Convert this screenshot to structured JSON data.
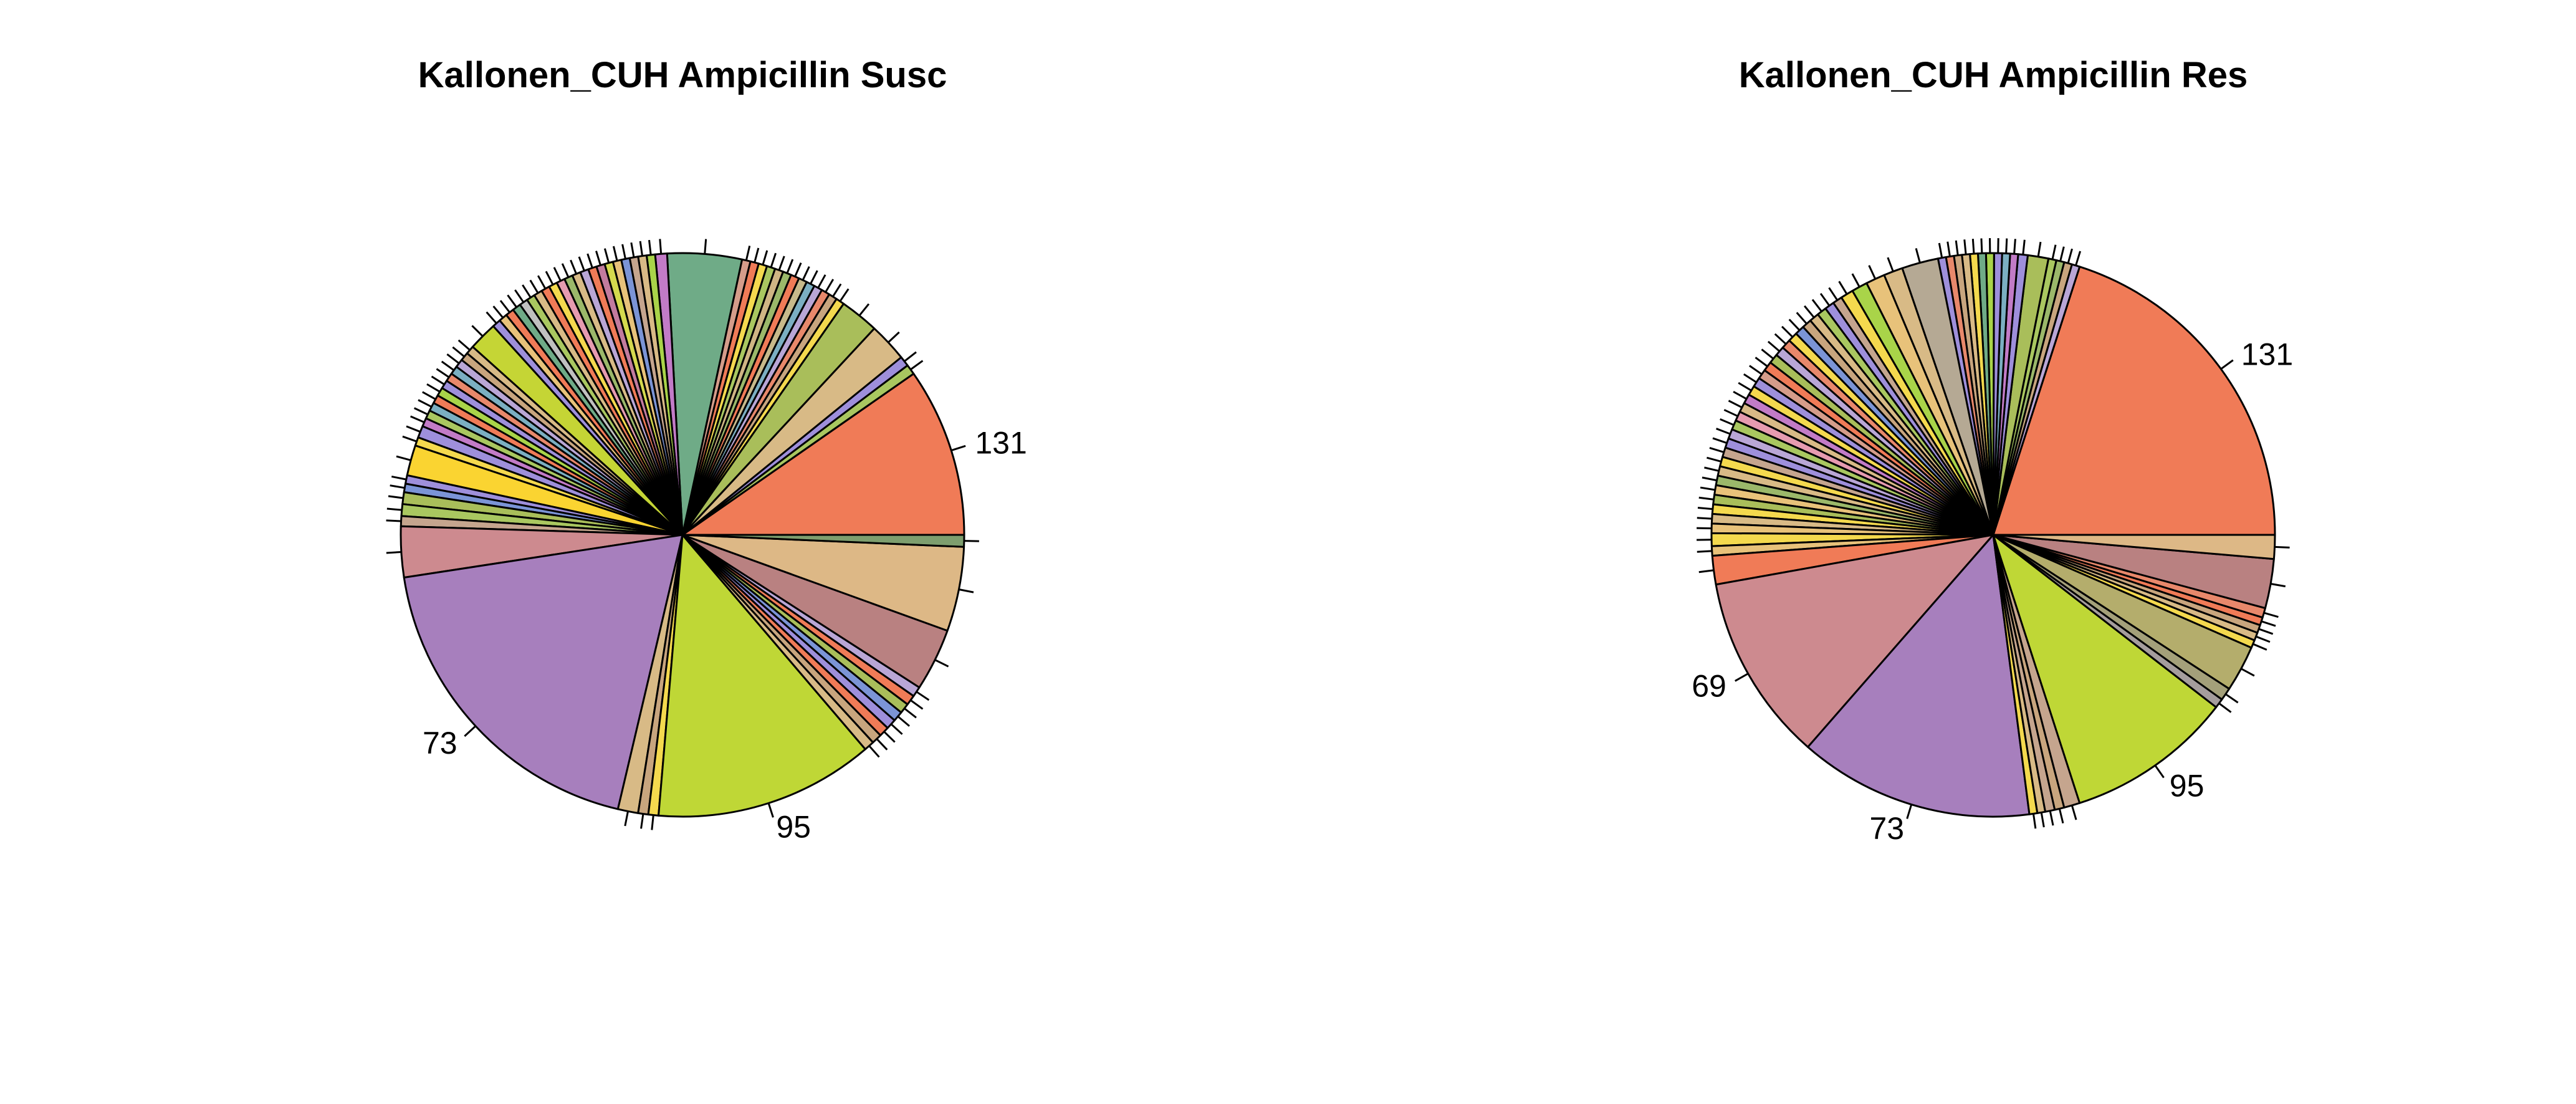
{
  "chart_data": [
    {
      "type": "pie",
      "title": "Kallonen_CUH Ampicillin Susc",
      "labeled_slices": [
        {
          "label": "131",
          "value": 10.0
        },
        {
          "label": "95",
          "value": 13.0
        },
        {
          "label": "73",
          "value": 19.5
        }
      ],
      "values": [
        10.0,
        0.6,
        0.6,
        2.3,
        2.3,
        0.5,
        0.5,
        0.5,
        0.5,
        0.5,
        0.5,
        0.5,
        0.5,
        0.5,
        0.5,
        0.5,
        0.5,
        0.5,
        4.4,
        0.7,
        0.5,
        0.5,
        0.5,
        0.5,
        0.5,
        0.5,
        0.5,
        0.5,
        0.5,
        0.5,
        0.5,
        0.5,
        0.5,
        0.5,
        0.5,
        0.5,
        0.5,
        0.5,
        0.5,
        0.5,
        0.5,
        1.7,
        0.5,
        0.5,
        0.5,
        0.5,
        0.5,
        0.5,
        0.5,
        0.5,
        0.5,
        0.5,
        0.5,
        0.7,
        0.5,
        1.8,
        0.5,
        0.5,
        0.7,
        0.7,
        0.6,
        3.0,
        19.5,
        1.2,
        0.6,
        0.6,
        13.0,
        0.6,
        0.6,
        0.6,
        0.6,
        0.6,
        0.6,
        0.6,
        0.6,
        3.7,
        5.0,
        0.7
      ],
      "colors": [
        "#F07B57",
        "#A9C760",
        "#9E8FDB",
        "#D8BA86",
        "#A9BE5A",
        "#F4D94E",
        "#C8A57E",
        "#E8886B",
        "#B9A6D6",
        "#7BAFC2",
        "#C7B98A",
        "#F07B57",
        "#9BB86A",
        "#CFB584",
        "#A9C760",
        "#F4D94E",
        "#F07B57",
        "#D59C8A",
        "#6FAB87",
        "#C27BC7",
        "#A9D449",
        "#D8BA86",
        "#C5A58E",
        "#7B94D6",
        "#E8C27A",
        "#D4D94E",
        "#C27B9E",
        "#F07B57",
        "#B9A6D6",
        "#D8BA86",
        "#9BB86A",
        "#E69BB0",
        "#F4D94E",
        "#F07B57",
        "#D8BA86",
        "#A9C760",
        "#C0C0C0",
        "#6FAB87",
        "#F07B57",
        "#E8C27A",
        "#9E8FDB",
        "#C5D535",
        "#D8BA86",
        "#C8A57E",
        "#B9A6D6",
        "#7BAFC2",
        "#E8886B",
        "#9E8FDB",
        "#A9D449",
        "#F07B57",
        "#7BAFC2",
        "#A9C760",
        "#C27BC7",
        "#9E8FDB",
        "#F4D94E",
        "#FAD431",
        "#9E8FDB",
        "#7B94D6",
        "#A9BE5A",
        "#A9C760",
        "#C5A58E",
        "#CD8A8F",
        "#A77FBD",
        "#D8BA86",
        "#C8A57E",
        "#F4D94E",
        "#BFD736",
        "#D8BA86",
        "#C8A57E",
        "#F07B57",
        "#9E8FDB",
        "#7B94D6",
        "#A9BE5A",
        "#F07B57",
        "#B9A6D6",
        "#B98181",
        "#DDB886",
        "#7E9E6E"
      ]
    },
    {
      "type": "pie",
      "title": "Kallonen_CUH Ampicillin Res",
      "labeled_slices": [
        {
          "label": "131",
          "value": 22.0
        },
        {
          "label": "69",
          "value": 11.8
        },
        {
          "label": "73",
          "value": 14.8
        },
        {
          "label": "95",
          "value": 10.5
        }
      ],
      "values": [
        22.0,
        0.5,
        0.5,
        0.5,
        0.5,
        1.3,
        0.6,
        0.5,
        0.5,
        0.5,
        0.5,
        0.5,
        0.5,
        0.5,
        0.5,
        0.5,
        0.5,
        2.3,
        1.2,
        1.2,
        1.0,
        0.8,
        0.6,
        0.6,
        0.6,
        0.6,
        0.6,
        0.6,
        0.6,
        0.6,
        0.6,
        0.6,
        0.6,
        0.6,
        0.6,
        0.6,
        0.6,
        0.6,
        0.6,
        0.6,
        0.6,
        0.6,
        0.6,
        0.6,
        0.6,
        0.6,
        0.6,
        0.6,
        0.6,
        0.6,
        0.6,
        0.8,
        0.6,
        1.8,
        11.8,
        14.8,
        0.5,
        0.5,
        0.6,
        0.6,
        1.0,
        10.5,
        0.6,
        0.8,
        2.9,
        0.5,
        0.5,
        0.5,
        0.5,
        0.6,
        3.1,
        1.5
      ],
      "colors": [
        "#F07B57",
        "#B9A6D6",
        "#C8A57E",
        "#9BB86A",
        "#A9C760",
        "#A9BE5A",
        "#9E8FDB",
        "#C27BC7",
        "#7BAFC2",
        "#9E8FDB",
        "#A9D449",
        "#6FAB87",
        "#F4D94E",
        "#D8BA86",
        "#C8A57E",
        "#E8886B",
        "#9E8FDB",
        "#B5A994",
        "#D8BA86",
        "#E8C27A",
        "#A9D449",
        "#F4D94E",
        "#C5A58E",
        "#9E8FDB",
        "#A9C760",
        "#D8BA86",
        "#C8A57E",
        "#7B94D6",
        "#F4D94E",
        "#E8886B",
        "#B9A6D6",
        "#A9BE5A",
        "#F07B57",
        "#D59C8A",
        "#9E8FDB",
        "#F4D94E",
        "#C27BC7",
        "#D8BA86",
        "#E69BB0",
        "#A9C760",
        "#B9A6D6",
        "#9E8FDB",
        "#C5A58E",
        "#F4D94E",
        "#D8BA86",
        "#9BB86A",
        "#E8C27A",
        "#A9BE5A",
        "#F4D94E",
        "#D8BA86",
        "#E8C27A",
        "#F4D94E",
        "#E8C27A",
        "#F07B57",
        "#CD8A8F",
        "#A77FBD",
        "#F4D94E",
        "#D8BA86",
        "#C5A58E",
        "#C8A57E",
        "#C5A58E",
        "#BFD736",
        "#A59D9D",
        "#A4A07A",
        "#B4AD6C",
        "#F4D94E",
        "#D8BA86",
        "#C8A57E",
        "#F07B57",
        "#E8886B",
        "#B98181",
        "#DDB886"
      ]
    }
  ]
}
